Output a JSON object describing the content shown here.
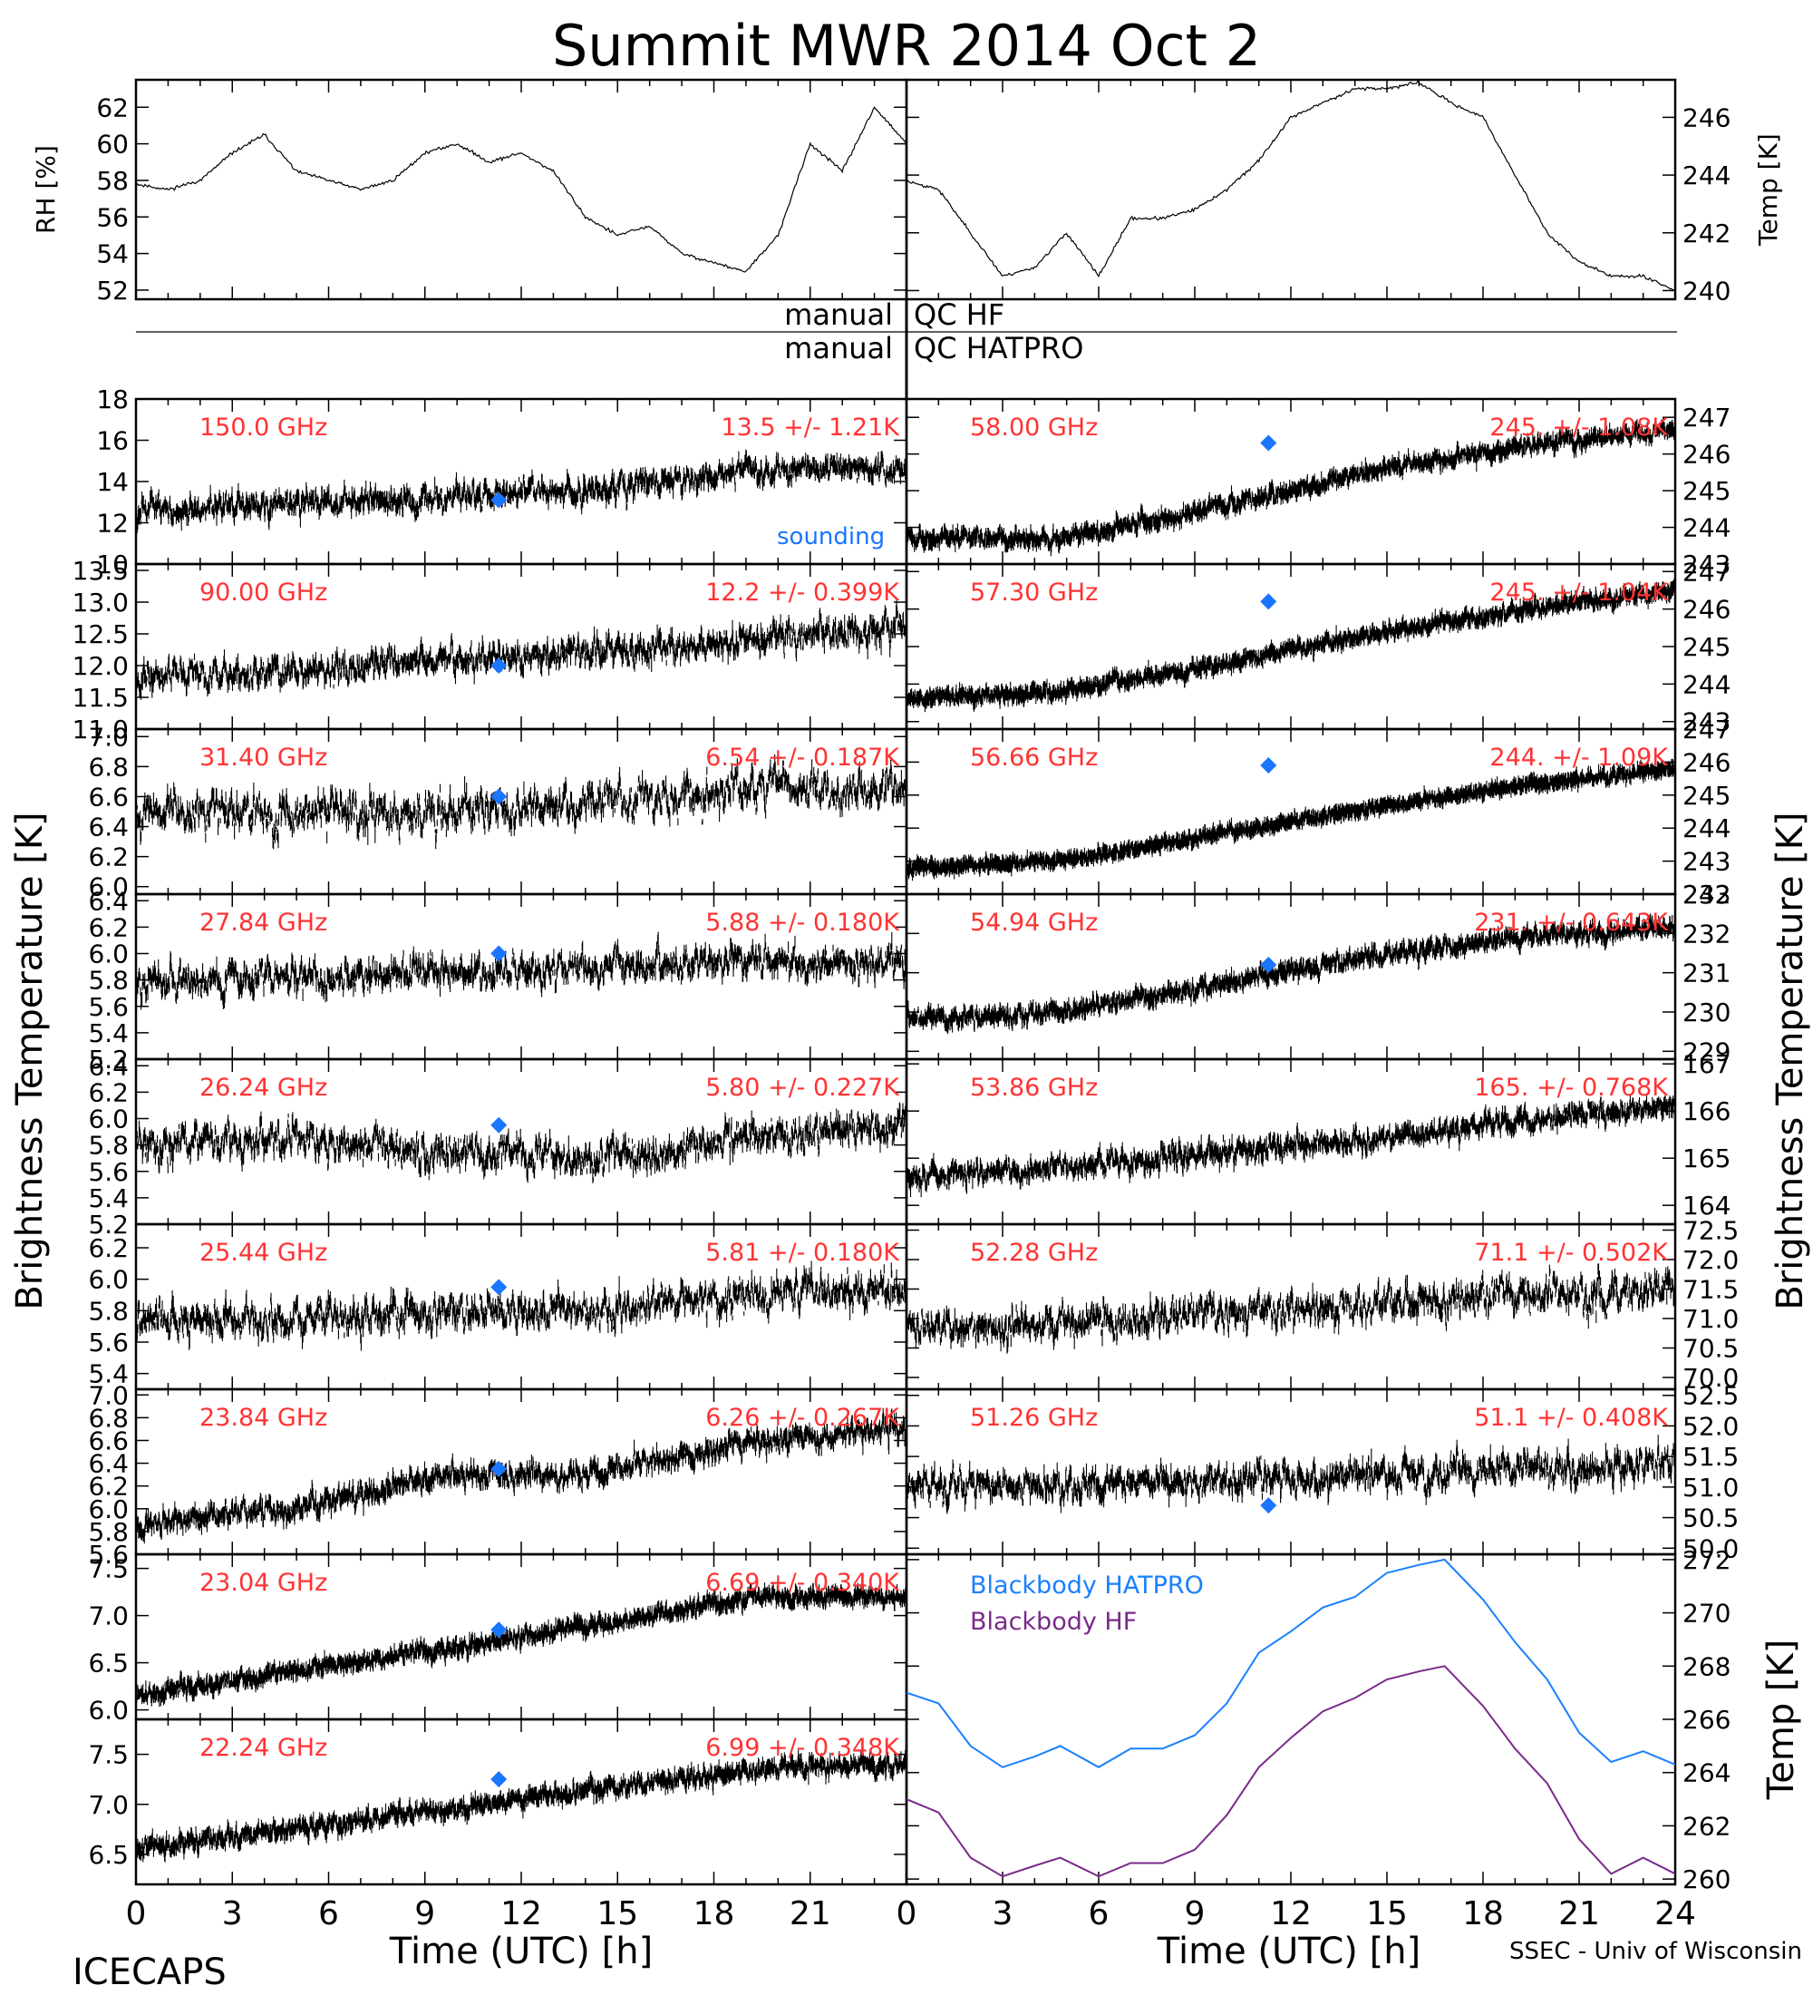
{
  "title": "Summit MWR 2014 Oct  2",
  "footer_left": "ICECAPS",
  "footer_right": "SSEC - Univ of Wisconsin",
  "qc_rows": [
    {
      "left": "manual",
      "right": "QC HF"
    },
    {
      "left": "manual",
      "right": "QC HATPRO"
    }
  ],
  "colors": {
    "label_red": "#ff3333",
    "sounding_blue": "#1a75ff",
    "hatpro_blue": "#1a80ff",
    "hf_purple": "#7a2a8a",
    "trace": "#000000"
  },
  "legend_sounding": "sounding",
  "y_axis_left": "Brightness Temperature [K]",
  "y_axis_right": "Brightness Temperature [K]",
  "x_axis_label": "Time (UTC) [h]",
  "x_ticks": [
    "0",
    "3",
    "6",
    "9",
    "12",
    "15",
    "18",
    "21",
    "24"
  ],
  "chart_data": [
    {
      "id": "rh",
      "type": "line",
      "ylabel": "RH [%]",
      "xlim": [
        0,
        24
      ],
      "ylim": [
        51.5,
        63.5
      ],
      "yticks": [
        "52",
        "54",
        "56",
        "58",
        "60",
        "62"
      ],
      "x": [
        0,
        1,
        2,
        3,
        4,
        5,
        6,
        7,
        8,
        9,
        10,
        11,
        12,
        13,
        14,
        15,
        16,
        17,
        18,
        19,
        20,
        21,
        22,
        23,
        24
      ],
      "y": [
        57.8,
        57.5,
        58,
        59.5,
        60.5,
        58.5,
        58,
        57.5,
        58,
        59.5,
        60,
        59,
        59.5,
        58.5,
        56,
        55,
        55.5,
        54,
        53.5,
        53,
        55,
        60,
        58.5,
        62,
        60
      ]
    },
    {
      "id": "temp",
      "type": "line",
      "ylabel": "Temp [K]",
      "xlim": [
        0,
        24
      ],
      "ylim": [
        239.7,
        247.3
      ],
      "yticks": [
        "240",
        "242",
        "244",
        "246"
      ],
      "x": [
        0,
        1,
        2,
        3,
        4,
        5,
        6,
        7,
        8,
        9,
        10,
        11,
        12,
        13,
        14,
        15,
        16,
        17,
        18,
        19,
        20,
        21,
        22,
        23,
        24
      ],
      "y": [
        243.8,
        243.5,
        242,
        240.5,
        240.8,
        242,
        240.5,
        242.5,
        242.5,
        242.8,
        243.5,
        244.5,
        246,
        246.5,
        247,
        247,
        247.2,
        246.5,
        246,
        244,
        242,
        241,
        240.5,
        240.5,
        240
      ]
    },
    {
      "id": "150",
      "type": "scatter",
      "freq": "150.0 GHz",
      "stat": "13.5 +/- 1.21K",
      "ylim": [
        10,
        18
      ],
      "yticks": [
        "10",
        "12",
        "14",
        "16",
        "18"
      ],
      "trend": [
        12.6,
        12.9,
        13.2,
        13.6,
        14.6,
        14.6
      ],
      "noise": 0.9,
      "sounding": [
        11.3,
        13.1
      ]
    },
    {
      "id": "58",
      "type": "scatter",
      "freq": "58.00 GHz",
      "stat": "245. +/- 1.08K",
      "ylim": [
        243,
        247.5
      ],
      "yticks": [
        "243",
        "244",
        "245",
        "246",
        "247"
      ],
      "trend": [
        243.7,
        243.7,
        244.5,
        245.5,
        246.2,
        246.7
      ],
      "noise": 0.3,
      "sounding": [
        11.3,
        246.3
      ]
    },
    {
      "id": "90",
      "type": "scatter",
      "freq": "90.00 GHz",
      "stat": "12.2 +/- 0.399K",
      "ylim": [
        11,
        13.6
      ],
      "yticks": [
        "11.0",
        "11.5",
        "12.0",
        "12.5",
        "13.0",
        "13.5"
      ],
      "trend": [
        11.8,
        11.9,
        12.1,
        12.2,
        12.4,
        12.6
      ],
      "noise": 0.35,
      "sounding": [
        11.3,
        12.0
      ]
    },
    {
      "id": "57.30",
      "type": "scatter",
      "freq": "57.30 GHz",
      "stat": "245. +/- 1.04K",
      "ylim": [
        242.8,
        247.2
      ],
      "yticks": [
        "243",
        "244",
        "245",
        "246",
        "247"
      ],
      "trend": [
        243.6,
        243.8,
        244.5,
        245.3,
        246,
        246.5
      ],
      "noise": 0.25,
      "sounding": [
        11.3,
        246.2
      ]
    },
    {
      "id": "31.40",
      "type": "scatter",
      "freq": "31.40 GHz",
      "stat": "6.54 +/- 0.187K",
      "ylim": [
        5.95,
        7.05
      ],
      "yticks": [
        "6.0",
        "6.2",
        "6.4",
        "6.6",
        "6.8",
        "7.0"
      ],
      "trend": [
        6.45,
        6.5,
        6.5,
        6.55,
        6.65,
        6.65
      ],
      "noise": 0.2,
      "sounding": [
        11.3,
        6.6
      ]
    },
    {
      "id": "56.66",
      "type": "scatter",
      "freq": "56.66 GHz",
      "stat": "244. +/- 1.09K",
      "ylim": [
        242,
        247
      ],
      "yticks": [
        "242",
        "243",
        "244",
        "245",
        "246",
        "247"
      ],
      "trend": [
        242.8,
        243,
        243.8,
        244.6,
        245.3,
        245.8
      ],
      "noise": 0.2,
      "sounding": [
        11.3,
        245.9
      ]
    },
    {
      "id": "27.84",
      "type": "scatter",
      "freq": "27.84 GHz",
      "stat": "5.88 +/- 0.180K",
      "ylim": [
        5.2,
        6.45
      ],
      "yticks": [
        "5.2",
        "5.4",
        "5.6",
        "5.8",
        "6.0",
        "6.2",
        "6.4"
      ],
      "trend": [
        5.8,
        5.8,
        5.85,
        5.9,
        5.95,
        5.9
      ],
      "noise": 0.18,
      "sounding": [
        11.3,
        6.0
      ]
    },
    {
      "id": "54.94",
      "type": "scatter",
      "freq": "54.94 GHz",
      "stat": "231. +/- 0.643K",
      "ylim": [
        228.8,
        233
      ],
      "yticks": [
        "229",
        "230",
        "231",
        "232",
        "233"
      ],
      "trend": [
        229.8,
        230,
        230.7,
        231.4,
        231.9,
        232.2
      ],
      "noise": 0.3,
      "sounding": [
        11.3,
        231.2
      ]
    },
    {
      "id": "26.24",
      "type": "scatter",
      "freq": "26.24 GHz",
      "stat": "5.80 +/- 0.227K",
      "ylim": [
        5.2,
        6.45
      ],
      "yticks": [
        "5.2",
        "5.4",
        "5.6",
        "5.8",
        "6.0",
        "6.2",
        "6.4"
      ],
      "trend": [
        5.8,
        5.85,
        5.75,
        5.7,
        5.85,
        5.95
      ],
      "noise": 0.2,
      "sounding": [
        11.3,
        5.95
      ]
    },
    {
      "id": "53.86",
      "type": "scatter",
      "freq": "53.86 GHz",
      "stat": "165. +/- 0.768K",
      "ylim": [
        163.6,
        167.1
      ],
      "yticks": [
        "164",
        "165",
        "166",
        "167"
      ],
      "trend": [
        164.6,
        164.8,
        165.1,
        165.4,
        165.8,
        166.1
      ],
      "noise": 0.35,
      "sounding": null
    },
    {
      "id": "25.44",
      "type": "scatter",
      "freq": "25.44 GHz",
      "stat": "5.81 +/- 0.180K",
      "ylim": [
        5.3,
        6.35
      ],
      "yticks": [
        "5.4",
        "5.6",
        "5.8",
        "6.0",
        "6.2"
      ],
      "trend": [
        5.75,
        5.75,
        5.8,
        5.8,
        5.9,
        5.95
      ],
      "noise": 0.17,
      "sounding": [
        11.3,
        5.95
      ]
    },
    {
      "id": "52.28",
      "type": "scatter",
      "freq": "52.28 GHz",
      "stat": "71.1 +/- 0.502K",
      "ylim": [
        69.8,
        72.6
      ],
      "yticks": [
        "70.0",
        "70.5",
        "71.0",
        "71.5",
        "72.0",
        "72.5"
      ],
      "trend": [
        70.8,
        70.9,
        71.1,
        71.2,
        71.4,
        71.5
      ],
      "noise": 0.45,
      "sounding": null
    },
    {
      "id": "23.84",
      "type": "scatter",
      "freq": "23.84 GHz",
      "stat": "6.26 +/- 0.267K",
      "ylim": [
        5.6,
        7.05
      ],
      "yticks": [
        "5.6",
        "5.8",
        "6.0",
        "6.2",
        "6.4",
        "6.6",
        "6.8",
        "7.0"
      ],
      "trend": [
        5.85,
        6.0,
        6.3,
        6.3,
        6.6,
        6.7
      ],
      "noise": 0.15,
      "sounding": [
        11.3,
        6.35
      ]
    },
    {
      "id": "51.26",
      "type": "scatter",
      "freq": "51.26 GHz",
      "stat": "51.1 +/- 0.408K",
      "ylim": [
        49.9,
        52.6
      ],
      "yticks": [
        "50.0",
        "50.5",
        "51.0",
        "51.5",
        "52.0",
        "52.5"
      ],
      "trend": [
        51.0,
        51.0,
        51.1,
        51.2,
        51.3,
        51.4
      ],
      "noise": 0.4,
      "sounding": [
        11.3,
        50.7
      ]
    },
    {
      "id": "23.04",
      "type": "scatter",
      "freq": "23.04 GHz",
      "stat": "6.69 +/- 0.340K",
      "ylim": [
        5.9,
        7.65
      ],
      "yticks": [
        "6.0",
        "6.5",
        "7.0",
        "7.5"
      ],
      "trend": [
        6.15,
        6.4,
        6.65,
        6.9,
        7.2,
        7.2
      ],
      "noise": 0.12,
      "sounding": [
        11.3,
        6.85
      ]
    },
    {
      "id": "22.24",
      "type": "scatter",
      "freq": "22.24 GHz",
      "stat": "6.99 +/- 0.348K",
      "ylim": [
        6.2,
        7.85
      ],
      "yticks": [
        "6.5",
        "7.0",
        "7.5"
      ],
      "trend": [
        6.55,
        6.75,
        6.95,
        7.15,
        7.35,
        7.4
      ],
      "noise": 0.13,
      "sounding": [
        11.3,
        7.25
      ]
    },
    {
      "id": "blackbody",
      "type": "line",
      "ylabel": "Temp [K]",
      "xlim": [
        0,
        24
      ],
      "ylim": [
        259.8,
        272.2
      ],
      "yticks": [
        "260",
        "262",
        "264",
        "266",
        "268",
        "270",
        "272"
      ],
      "series": [
        {
          "name": "Blackbody HATPRO",
          "x": [
            0,
            1,
            2,
            3,
            4,
            4.8,
            6,
            7,
            8,
            9,
            10,
            11,
            12,
            13,
            14,
            15,
            16,
            16.8,
            18,
            19,
            20,
            21,
            22,
            23,
            24
          ],
          "y": [
            267,
            266.6,
            265,
            264.2,
            264.6,
            265,
            264.2,
            264.9,
            264.9,
            265.4,
            266.6,
            268.5,
            269.3,
            270.2,
            270.6,
            271.5,
            271.8,
            272,
            270.5,
            268.9,
            267.5,
            265.5,
            264.4,
            264.8,
            264.3
          ]
        },
        {
          "name": "Blackbody HF",
          "x": [
            0,
            1,
            2,
            3,
            4,
            4.8,
            6,
            7,
            8,
            9,
            10,
            11,
            12,
            13,
            14,
            15,
            16,
            16.8,
            18,
            19,
            20,
            21,
            22,
            23,
            24
          ],
          "y": [
            263,
            262.5,
            260.8,
            260.1,
            260.5,
            260.8,
            260.1,
            260.6,
            260.6,
            261.1,
            262.4,
            264.2,
            265.3,
            266.3,
            266.8,
            267.5,
            267.8,
            268,
            266.5,
            264.9,
            263.6,
            261.5,
            260.2,
            260.8,
            260.2
          ]
        }
      ]
    }
  ]
}
